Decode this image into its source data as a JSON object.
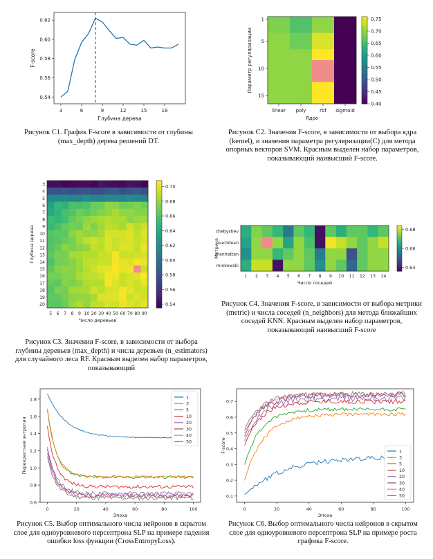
{
  "captions": {
    "c1": "Рисунок С1. График F-score в зависимости от глубины (max_depth) дерева решений DT.",
    "c2": "Рисунок С2. Значения F-score, в зависимости от выбора ядра (kernel), и значения параметра регуляризации(C) для метода опорных векторов SVM. Красным выделен набор параметров, показывающий наивысший F-score.",
    "c3": "Рисунок С3. Значения F-score, в зависимости от выбора глубины деревьев (max_depth) и числа деревьев (n_estimators) для случайного леса RF. Красным выделен набор параметров, показывающий",
    "c4": "Рисунок С4. Значения F-score, в зависимости от выбора метрики (metric) и числа соседей (n_neighbors) для метода ближайших соседей KNN. Красным выделен набор параметров, показывающий наивысший F-score",
    "c5": "Рисунок С5. Выбор оптимального числа нейронов в скрытом слое для одноуровневого персептрона SLP на примере падения ошибки loss функции (CrossEntropyLoss).",
    "c6": "Рисунок С6. Выбор оптимального числа нейронов в скрытом слое для одноуровневого персептрона SLP на примере роста графика F-score."
  },
  "colors": {
    "red": "#f08c8c",
    "series": [
      "#1f77b4",
      "#ff7f0e",
      "#2ca02c",
      "#d62728",
      "#9467bd",
      "#8c564b",
      "#e377c2",
      "#7f7f7f"
    ]
  },
  "chart_data": [
    {
      "id": "c1",
      "type": "line",
      "xlabel": "Глубина дерева",
      "ylabel": "F-score",
      "x": [
        3,
        4,
        5,
        6,
        7,
        8,
        9,
        10,
        11,
        12,
        13,
        14,
        15,
        16,
        17,
        18,
        19,
        20
      ],
      "values": [
        0.54,
        0.546,
        0.579,
        0.597,
        0.606,
        0.622,
        0.618,
        0.609,
        0.601,
        0.602,
        0.595,
        0.594,
        0.599,
        0.591,
        0.592,
        0.591,
        0.591,
        0.595
      ],
      "xlim": [
        2,
        21
      ],
      "ylim": [
        0.533,
        0.628
      ],
      "xticks": [
        3,
        6,
        9,
        12,
        15,
        18
      ],
      "xtick_labels": [
        "3",
        "6",
        "9",
        "12",
        "15",
        "18"
      ],
      "yticks": [
        0.54,
        0.56,
        0.58,
        0.6,
        0.62
      ],
      "ytick_labels": [
        "0.54",
        "0.56",
        "0.58",
        "0.60",
        "0.62"
      ],
      "vline": 8
    },
    {
      "id": "c2",
      "type": "heatmap",
      "xlabel": "Ядро",
      "ylabel": "Параметр регуляризации",
      "xcats": [
        "linear",
        "poly",
        "rbf",
        "sigmoid"
      ],
      "rows": 16,
      "ytick_rows": [
        1,
        5,
        10,
        15
      ],
      "ytick_labels": [
        "1",
        "5",
        "10",
        "15"
      ],
      "bands": [
        {
          "from": 1,
          "to": 4,
          "values": [
            0.69,
            0.66,
            0.7,
            0.4
          ]
        },
        {
          "from": 4,
          "to": 7,
          "values": [
            0.7,
            0.68,
            0.74,
            0.4
          ]
        },
        {
          "from": 7,
          "to": 13,
          "values": [
            0.7,
            0.7,
            0.76,
            0.4
          ]
        },
        {
          "from": 13,
          "to": 17,
          "values": [
            0.7,
            0.7,
            0.76,
            0.4
          ]
        }
      ],
      "highlight": {
        "col": 2,
        "from": 9,
        "to": 13
      },
      "vmin": 0.4,
      "vmax": 0.76,
      "cbar_ticks": [
        0.4,
        0.45,
        0.5,
        0.55,
        0.6,
        0.65,
        0.7,
        0.75
      ],
      "cbar_labels": [
        "0.40",
        "0.45",
        "0.50",
        "0.55",
        "0.60",
        "0.65",
        "0.70",
        "0.75"
      ]
    },
    {
      "id": "c3",
      "type": "heatmap",
      "xlabel": "Число деревьев",
      "ylabel": "Глубина дерева",
      "xcats": [
        "5",
        "6",
        "7",
        "8",
        "9",
        "10",
        "20",
        "30",
        "40",
        "50",
        "60",
        "70",
        "80",
        "90"
      ],
      "ycats": [
        "3",
        "4",
        "5",
        "6",
        "7",
        "8",
        "9",
        "10",
        "11",
        "12",
        "13",
        "14",
        "15",
        "16",
        "17",
        "18",
        "19",
        "20"
      ],
      "highlight": {
        "col": 12,
        "row": 12
      },
      "vmin": 0.535,
      "vmax": 0.708,
      "cbar_ticks": [
        0.54,
        0.56,
        0.58,
        0.6,
        0.62,
        0.64,
        0.66,
        0.68,
        0.7
      ],
      "cbar_labels": [
        "0.54",
        "0.56",
        "0.58",
        "0.60",
        "0.62",
        "0.64",
        "0.66",
        "0.68",
        "0.70"
      ]
    },
    {
      "id": "c4",
      "type": "heatmap",
      "xlabel": "Число соседей",
      "ylabel": "Метрика",
      "xcats": [
        "1",
        "2",
        "3",
        "4",
        "5",
        "6",
        "7",
        "8",
        "9",
        "10",
        "11",
        "12",
        "13",
        "14"
      ],
      "ycats": [
        "chebyshev",
        "euclidean",
        "manhattan",
        "minkowski"
      ],
      "grid": [
        [
          0.666,
          0.675,
          0.672,
          0.668,
          0.655,
          0.672,
          0.668,
          0.638,
          0.672,
          0.666,
          0.672,
          0.672,
          0.668,
          0.672
        ],
        [
          0.664,
          0.676,
          0.69,
          0.676,
          0.664,
          0.676,
          0.67,
          0.638,
          0.683,
          0.68,
          0.676,
          0.672,
          0.676,
          0.68
        ],
        [
          0.66,
          0.676,
          0.676,
          0.668,
          0.672,
          0.676,
          0.672,
          0.656,
          0.676,
          0.676,
          0.648,
          0.672,
          0.676,
          0.676
        ],
        [
          0.666,
          0.68,
          0.68,
          0.638,
          0.676,
          0.676,
          0.672,
          0.66,
          0.676,
          0.672,
          0.652,
          0.672,
          0.676,
          0.676
        ]
      ],
      "highlight": {
        "col": 2,
        "row": 1
      },
      "vmin": 0.636,
      "vmax": 0.684,
      "cbar_ticks": [
        0.64,
        0.66,
        0.68
      ],
      "cbar_labels": [
        "0.64",
        "0.66",
        "0.68"
      ]
    },
    {
      "id": "c5",
      "type": "line",
      "xlabel": "Эпоха",
      "ylabel": "Перекрестная энтропия",
      "legend": [
        "1",
        "3",
        "5",
        "10",
        "20",
        "30",
        "40",
        "50"
      ],
      "start": [
        1.86,
        1.69,
        1.67,
        1.48,
        1.24,
        1.22,
        1.17,
        1.13
      ],
      "end": [
        1.35,
        0.9,
        0.89,
        0.78,
        0.7,
        0.68,
        0.67,
        0.65
      ],
      "tau": [
        13,
        6,
        6,
        6,
        6,
        6,
        6,
        6
      ],
      "noise": [
        0.005,
        0.01,
        0.015,
        0.02,
        0.025,
        0.025,
        0.025,
        0.025
      ],
      "xlim": [
        -5,
        105
      ],
      "ylim": [
        0.6,
        1.92
      ],
      "xticks": [
        0,
        20,
        40,
        60,
        80,
        100
      ],
      "xtick_labels": [
        "0",
        "20",
        "40",
        "60",
        "80",
        "100"
      ],
      "yticks": [
        0.6,
        0.8,
        1.0,
        1.2,
        1.4,
        1.6,
        1.8
      ],
      "ytick_labels": [
        "0.6",
        "0.8",
        "1.0",
        "1.2",
        "1.4",
        "1.6",
        "1.8"
      ]
    },
    {
      "id": "c6",
      "type": "line",
      "xlabel": "Эпоха",
      "ylabel": "F-score",
      "legend": [
        "1",
        "3",
        "5",
        "10",
        "20",
        "30",
        "40",
        "50"
      ],
      "start": [
        0.11,
        0.2,
        0.3,
        0.42,
        0.45,
        0.48,
        0.5,
        0.52
      ],
      "end": [
        0.35,
        0.62,
        0.65,
        0.7,
        0.72,
        0.74,
        0.745,
        0.745
      ],
      "tau": [
        25,
        12,
        10,
        10,
        10,
        10,
        10,
        10
      ],
      "noise": [
        0.015,
        0.01,
        0.012,
        0.015,
        0.02,
        0.02,
        0.018,
        0.018
      ],
      "xlim": [
        -5,
        105
      ],
      "ylim": [
        0.06,
        0.78
      ],
      "xticks": [
        0,
        20,
        40,
        60,
        80,
        100
      ],
      "xtick_labels": [
        "0",
        "20",
        "40",
        "60",
        "80",
        "100"
      ],
      "yticks": [
        0.1,
        0.2,
        0.3,
        0.4,
        0.5,
        0.6,
        0.7
      ],
      "ytick_labels": [
        "0.1",
        "0.2",
        "0.3",
        "0.4",
        "0.5",
        "0.6",
        "0.7"
      ]
    }
  ]
}
